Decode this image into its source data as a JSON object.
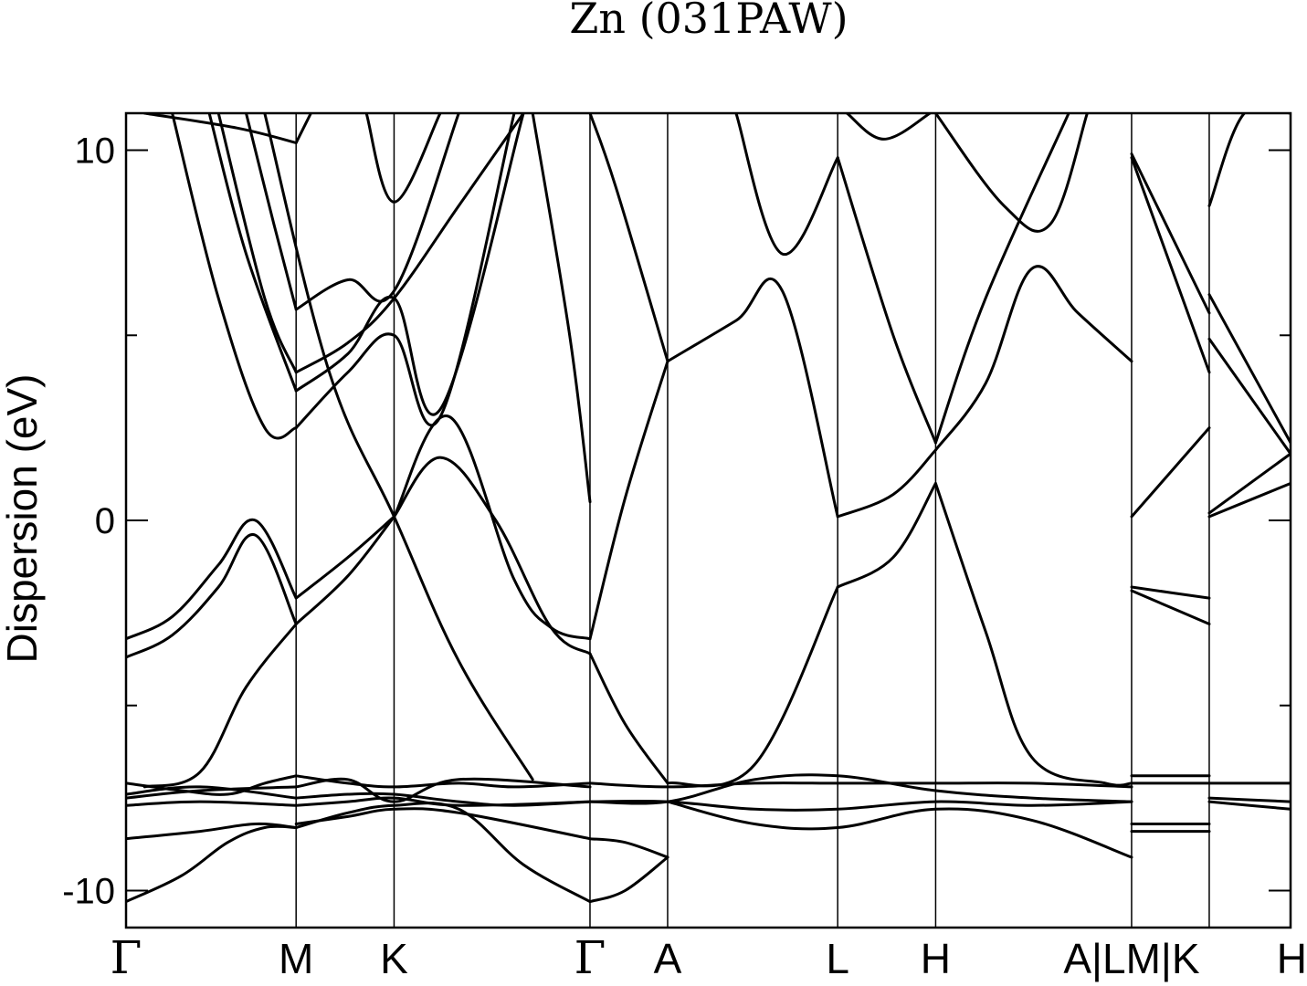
{
  "chart_data": {
    "type": "line",
    "title": "Zn (031PAW)",
    "ylabel": "Dispersion (eV)",
    "xlabel": "",
    "ylim": [
      -11,
      11
    ],
    "xlim": [
      0,
      12.6
    ],
    "grid": false,
    "legend": "none",
    "line_color": "#000000",
    "y_ticks": [
      -10,
      0,
      10
    ],
    "y_minor_ticks": [
      -5,
      5
    ],
    "kpoints": [
      {
        "label": "Γ",
        "x": 0
      },
      {
        "label": "M",
        "x": 1.84
      },
      {
        "label": "K",
        "x": 2.9
      },
      {
        "label": "Γ",
        "x": 5.02
      },
      {
        "label": "A",
        "x": 5.86
      },
      {
        "label": "L",
        "x": 7.7
      },
      {
        "label": "H",
        "x": 8.76
      },
      {
        "label": "A|LM|K",
        "x": 10.88
      },
      {
        "label": "H",
        "x": 12.6
      }
    ],
    "separators_x": [
      1.84,
      2.9,
      5.02,
      5.86,
      7.7,
      8.76,
      10.88,
      11.72,
      12.6
    ],
    "series": [
      {
        "x": [
          0,
          0.6,
          1.1,
          1.5,
          1.84
        ],
        "y": [
          -10.3,
          -9.6,
          -8.7,
          -8.3,
          -8.3
        ]
      },
      {
        "x": [
          0,
          0.8,
          1.4,
          1.84
        ],
        "y": [
          -8.6,
          -8.4,
          -8.2,
          -8.3
        ]
      },
      {
        "x": [
          1.84,
          2.4,
          2.9,
          3.6,
          4.3,
          5.02
        ],
        "y": [
          -8.3,
          -7.9,
          -7.7,
          -7.8,
          -9.3,
          -10.3
        ]
      },
      {
        "x": [
          1.84,
          2.4,
          2.9,
          3.6,
          5.02
        ],
        "y": [
          -8.2,
          -8.0,
          -7.8,
          -7.9,
          -8.6
        ]
      },
      {
        "x": [
          5.02,
          5.4,
          5.86
        ],
        "y": [
          -10.3,
          -10.0,
          -9.1
        ]
      },
      {
        "x": [
          5.02,
          5.4,
          5.86
        ],
        "y": [
          -8.6,
          -8.7,
          -9.1
        ]
      },
      {
        "x": [
          0,
          0.6,
          1.1,
          1.5,
          1.84
        ],
        "y": [
          -7.1,
          -7.3,
          -7.4,
          -7.1,
          -6.9
        ]
      },
      {
        "x": [
          0,
          0.8,
          1.84
        ],
        "y": [
          -7.4,
          -7.2,
          -7.5
        ]
      },
      {
        "x": [
          0,
          0.8,
          1.84
        ],
        "y": [
          -7.7,
          -7.6,
          -7.7
        ]
      },
      {
        "x": [
          0,
          0.8,
          1.84
        ],
        "y": [
          -7.5,
          -7.3,
          -7.2
        ]
      },
      {
        "x": [
          1.84,
          2.4,
          2.9,
          3.6,
          4.2,
          5.02
        ],
        "y": [
          -6.9,
          -7.1,
          -7.2,
          -7.1,
          -7.2,
          -7.1
        ]
      },
      {
        "x": [
          1.84,
          2.4,
          2.9,
          3.6,
          4.2,
          5.02
        ],
        "y": [
          -7.5,
          -7.4,
          -7.4,
          -7.6,
          -7.7,
          -7.6
        ]
      },
      {
        "x": [
          1.84,
          2.4,
          2.9,
          3.6,
          5.02
        ],
        "y": [
          -7.7,
          -7.6,
          -7.5,
          -7.7,
          -7.6
        ]
      },
      {
        "x": [
          1.84,
          2.4,
          2.9,
          3.6,
          5.02
        ],
        "y": [
          -7.2,
          -7.0,
          -7.6,
          -7.0,
          -7.2
        ]
      },
      {
        "x": [
          5.02,
          5.86,
          6.8,
          7.7,
          8.76,
          9.8,
          10.88
        ],
        "y": [
          -7.1,
          -7.2,
          -7.1,
          -7.1,
          -7.1,
          -7.1,
          -7.2
        ]
      },
      {
        "x": [
          5.02,
          5.86,
          6.8,
          7.7,
          8.76,
          9.8,
          10.88
        ],
        "y": [
          -7.6,
          -7.6,
          -7.0,
          -6.9,
          -7.3,
          -7.5,
          -7.6
        ]
      },
      {
        "x": [
          5.02,
          5.86,
          6.8,
          7.7,
          8.76,
          9.8,
          10.88
        ],
        "y": [
          -7.6,
          -7.6,
          -7.8,
          -7.8,
          -7.6,
          -7.7,
          -7.6
        ]
      },
      {
        "x": [
          5.86,
          6.8,
          7.7,
          8.76,
          9.8,
          10.88
        ],
        "y": [
          -7.6,
          -8.2,
          -8.3,
          -7.8,
          -8.1,
          -9.1
        ]
      },
      {
        "x": [
          10.88,
          11.72
        ],
        "y": [
          -6.9,
          -6.9
        ]
      },
      {
        "x": [
          10.88,
          11.72
        ],
        "y": [
          -7.1,
          -7.1
        ]
      },
      {
        "x": [
          10.88,
          11.72
        ],
        "y": [
          -8.2,
          -8.2
        ]
      },
      {
        "x": [
          10.88,
          11.72
        ],
        "y": [
          -8.4,
          -8.4
        ]
      },
      {
        "x": [
          11.72,
          12.6
        ],
        "y": [
          -7.1,
          -7.1
        ]
      },
      {
        "x": [
          11.72,
          12.6
        ],
        "y": [
          -7.5,
          -7.6
        ]
      },
      {
        "x": [
          11.72,
          12.6
        ],
        "y": [
          -7.6,
          -7.8
        ]
      },
      {
        "x": [
          0,
          0.5,
          1.0,
          1.4,
          1.84
        ],
        "y": [
          -3.2,
          -2.6,
          -1.2,
          0.0,
          -2.1
        ]
      },
      {
        "x": [
          0,
          0.5,
          1.0,
          1.4,
          1.84
        ],
        "y": [
          -3.7,
          -3.1,
          -1.8,
          -0.4,
          -2.8
        ]
      },
      {
        "x": [
          1.84,
          2.4,
          2.9
        ],
        "y": [
          -2.1,
          -1.0,
          0.1
        ]
      },
      {
        "x": [
          1.84,
          2.4,
          2.9
        ],
        "y": [
          -2.8,
          -1.5,
          0.1
        ]
      },
      {
        "x": [
          0.2,
          0.8,
          1.3,
          1.84
        ],
        "y": [
          -7.2,
          -6.8,
          -4.5,
          -2.8
        ]
      },
      {
        "x": [
          2.9,
          3.4,
          4.0,
          4.6,
          5.02
        ],
        "y": [
          0.1,
          1.7,
          0.0,
          -2.9,
          -3.6
        ]
      },
      {
        "x": [
          2.9,
          3.5,
          4.2,
          4.6,
          5.02
        ],
        "y": [
          0.1,
          2.8,
          -1.6,
          -2.9,
          -3.2
        ]
      },
      {
        "x": [
          1.5,
          2.2,
          2.9,
          3.6,
          4.4
        ],
        "y": [
          11.0,
          4.0,
          0.1,
          -3.8,
          -7.0
        ]
      },
      {
        "x": [
          5.02,
          5.4,
          5.86
        ],
        "y": [
          -3.6,
          -5.5,
          -7.1
        ]
      },
      {
        "x": [
          5.02,
          5.4,
          5.86
        ],
        "y": [
          -3.2,
          0.6,
          4.3
        ]
      },
      {
        "x": [
          5.86,
          6.6,
          7.1,
          7.7
        ],
        "y": [
          4.3,
          5.4,
          6.2,
          0.1
        ]
      },
      {
        "x": [
          5.86,
          6.8,
          7.7
        ],
        "y": [
          -7.1,
          -6.6,
          -1.8
        ]
      },
      {
        "x": [
          7.7,
          8.3,
          8.76
        ],
        "y": [
          -1.8,
          -1.0,
          1.0
        ]
      },
      {
        "x": [
          7.7,
          8.3,
          8.76
        ],
        "y": [
          0.1,
          0.7,
          1.9
        ]
      },
      {
        "x": [
          8.76,
          9.3,
          9.8,
          10.6,
          10.88
        ],
        "y": [
          1.0,
          -3.0,
          -6.4,
          -7.1,
          -7.1
        ]
      },
      {
        "x": [
          8.76,
          9.3,
          9.8,
          10.3,
          10.88
        ],
        "y": [
          1.9,
          3.7,
          6.8,
          5.6,
          4.3
        ]
      },
      {
        "x": [
          8.76,
          9.3,
          10.2
        ],
        "y": [
          2.1,
          6.0,
          11.0
        ]
      },
      {
        "x": [
          7.7,
          8.3,
          8.76
        ],
        "y": [
          9.8,
          5.0,
          2.1
        ]
      },
      {
        "x": [
          6.6,
          7.1,
          7.7
        ],
        "y": [
          11.0,
          7.2,
          9.8
        ]
      },
      {
        "x": [
          7.8,
          8.2,
          8.7
        ],
        "y": [
          11.0,
          10.3,
          11.0
        ]
      },
      {
        "x": [
          8.76,
          9.5,
          10.0,
          10.4
        ],
        "y": [
          11.0,
          8.5,
          8.0,
          11.0
        ]
      },
      {
        "x": [
          10.88,
          11.72
        ],
        "y": [
          0.1,
          2.5
        ]
      },
      {
        "x": [
          10.88,
          11.72
        ],
        "y": [
          9.8,
          4.0
        ]
      },
      {
        "x": [
          10.88,
          11.72
        ],
        "y": [
          9.9,
          5.6
        ]
      },
      {
        "x": [
          10.88,
          11.72
        ],
        "y": [
          -1.8,
          -2.1
        ]
      },
      {
        "x": [
          10.88,
          11.72
        ],
        "y": [
          -1.9,
          -2.8
        ]
      },
      {
        "x": [
          11.72,
          12.6
        ],
        "y": [
          0.1,
          1.0
        ]
      },
      {
        "x": [
          11.72,
          12.6
        ],
        "y": [
          0.2,
          1.8
        ]
      },
      {
        "x": [
          11.72,
          12.6
        ],
        "y": [
          4.9,
          1.8
        ]
      },
      {
        "x": [
          11.72,
          12.6
        ],
        "y": [
          6.1,
          2.1
        ]
      },
      {
        "x": [
          11.72,
          12.1,
          12.6
        ],
        "y": [
          8.5,
          11.0,
          11.0
        ]
      },
      {
        "x": [
          0.5,
          1.0,
          1.5,
          1.84
        ],
        "y": [
          11.0,
          6.0,
          2.5,
          2.5
        ]
      },
      {
        "x": [
          0.9,
          1.3,
          1.84
        ],
        "y": [
          11.0,
          7.2,
          3.5
        ]
      },
      {
        "x": [
          1.0,
          1.5,
          1.84
        ],
        "y": [
          11.0,
          6.0,
          4.0
        ]
      },
      {
        "x": [
          1.3,
          1.6,
          1.84
        ],
        "y": [
          11.0,
          8.0,
          5.7
        ]
      },
      {
        "x": [
          1.84,
          2.4,
          2.9,
          3.4,
          4.2
        ],
        "y": [
          2.5,
          4.0,
          5.0,
          2.8,
          11.0
        ]
      },
      {
        "x": [
          1.84,
          2.4,
          2.9,
          3.4,
          4.3
        ],
        "y": [
          3.5,
          4.5,
          6.0,
          3.0,
          11.0
        ]
      },
      {
        "x": [
          1.84,
          2.4,
          2.9,
          3.6,
          4.3
        ],
        "y": [
          4.0,
          4.8,
          6.0,
          8.5,
          11.0
        ]
      },
      {
        "x": [
          1.84,
          2.4,
          2.9,
          3.6
        ],
        "y": [
          5.7,
          6.5,
          6.2,
          11.0
        ]
      },
      {
        "x": [
          1.84,
          2.0
        ],
        "y": [
          10.2,
          11.0
        ]
      },
      {
        "x": [
          2.6,
          2.9,
          3.4
        ],
        "y": [
          11.0,
          8.6,
          11.0
        ]
      },
      {
        "x": [
          4.4,
          4.8,
          5.02
        ],
        "y": [
          11.0,
          5.0,
          0.5
        ]
      },
      {
        "x": [
          0.2,
          1.2,
          1.84
        ],
        "y": [
          11.0,
          10.6,
          10.2
        ]
      },
      {
        "x": [
          5.02,
          5.3,
          5.86
        ],
        "y": [
          11.0,
          9.0,
          4.3
        ]
      }
    ]
  }
}
